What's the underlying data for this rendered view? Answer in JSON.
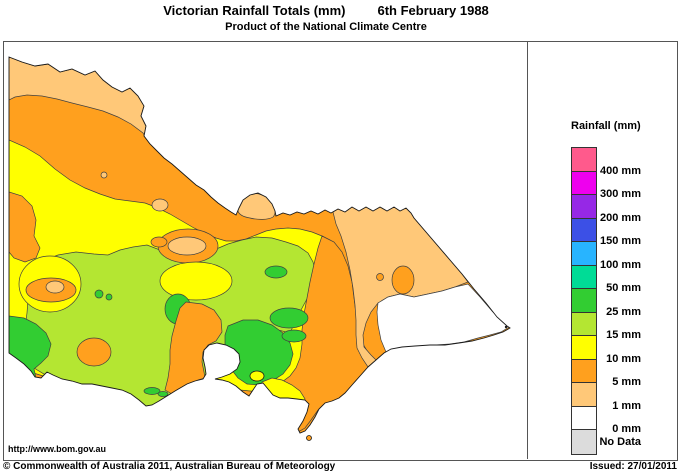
{
  "header": {
    "title": "Victorian Rainfall Totals (mm)",
    "date": "6th February 1988",
    "subtitle": "Product of the National Climate Centre"
  },
  "legend": {
    "title": "Rainfall (mm)",
    "entries": [
      {
        "color": "#FF5A8C",
        "label": "400 mm"
      },
      {
        "color": "#EE00EE",
        "label": "300 mm"
      },
      {
        "color": "#9628E6",
        "label": "200 mm"
      },
      {
        "color": "#3C50E6",
        "label": "150 mm"
      },
      {
        "color": "#28B4FF",
        "label": "100 mm"
      },
      {
        "color": "#00DC96",
        "label": "50 mm"
      },
      {
        "color": "#32CD32",
        "label": "25 mm"
      },
      {
        "color": "#B4E632",
        "label": "15 mm"
      },
      {
        "color": "#FFFF00",
        "label": "10 mm"
      },
      {
        "color": "#FFA01E",
        "label": "5 mm"
      },
      {
        "color": "#FFC878",
        "label": "1 mm"
      },
      {
        "color": "#FFFFFF",
        "label": "0 mm"
      },
      {
        "color": "#DCDCDC",
        "label": "No Data"
      }
    ]
  },
  "map": {
    "palette": {
      "orange": "#FFA01E",
      "light_orange": "#FFC878",
      "yellow": "#FFFF00",
      "chartreuse": "#B4E632",
      "green": "#32CD32",
      "white": "#FFFFFF",
      "outline": "#1A1A1A",
      "contour": "#404040"
    }
  },
  "footer": {
    "url": "http://www.bom.gov.au",
    "copyright": "© Commonwealth of Australia 2011, Australian Bureau of Meteorology",
    "issued": "Issued: 27/01/2011"
  }
}
